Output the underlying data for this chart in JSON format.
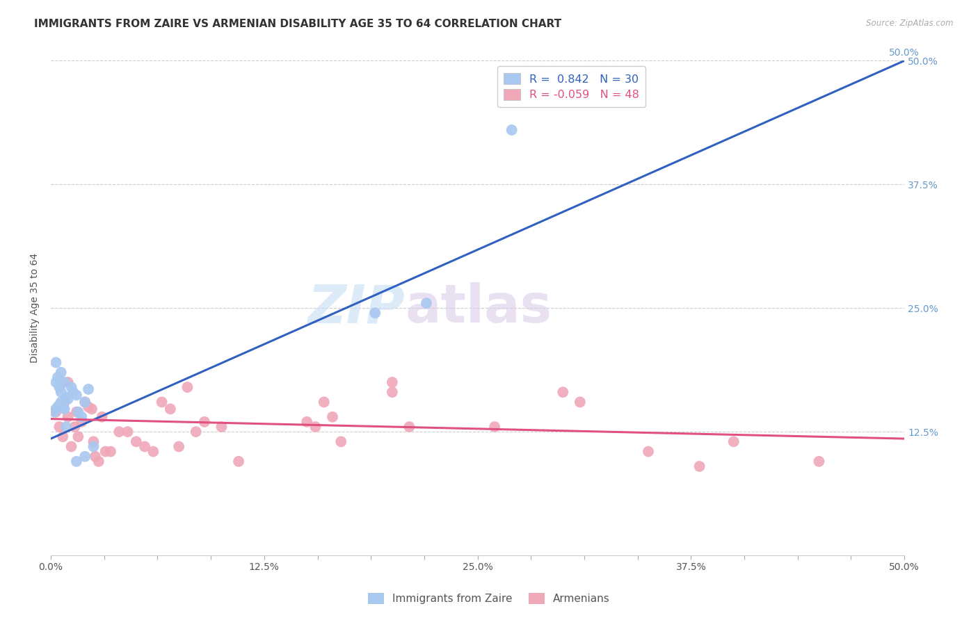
{
  "title": "IMMIGRANTS FROM ZAIRE VS ARMENIAN DISABILITY AGE 35 TO 64 CORRELATION CHART",
  "source": "Source: ZipAtlas.com",
  "ylabel": "Disability Age 35 to 64",
  "xlim": [
    0.0,
    0.5
  ],
  "ylim": [
    0.0,
    0.5
  ],
  "xtick_labels": [
    "0.0%",
    "",
    "",
    "",
    "12.5%",
    "",
    "",
    "",
    "25.0%",
    "",
    "",
    "",
    "37.5%",
    "",
    "",
    "",
    "50.0%"
  ],
  "xtick_vals": [
    0.0,
    0.03125,
    0.0625,
    0.09375,
    0.125,
    0.15625,
    0.1875,
    0.21875,
    0.25,
    0.28125,
    0.3125,
    0.34375,
    0.375,
    0.40625,
    0.4375,
    0.46875,
    0.5
  ],
  "ytick_labels": [
    "12.5%",
    "25.0%",
    "37.5%",
    "50.0%"
  ],
  "ytick_vals": [
    0.125,
    0.25,
    0.375,
    0.5
  ],
  "grid_color": "#cccccc",
  "background_color": "#ffffff",
  "watermark_zip": "ZIP",
  "watermark_atlas": "atlas",
  "blue_R": "0.842",
  "blue_N": "30",
  "pink_R": "-0.059",
  "pink_N": "48",
  "blue_color": "#a8c8f0",
  "pink_color": "#f0a8b8",
  "blue_line_color": "#3060c0",
  "pink_line_color": "#e05080",
  "blue_scatter": [
    [
      0.002,
      0.145
    ],
    [
      0.003,
      0.148
    ],
    [
      0.004,
      0.15
    ],
    [
      0.005,
      0.152
    ],
    [
      0.006,
      0.155
    ],
    [
      0.007,
      0.15
    ],
    [
      0.008,
      0.148
    ],
    [
      0.009,
      0.16
    ],
    [
      0.01,
      0.158
    ],
    [
      0.012,
      0.17
    ],
    [
      0.013,
      0.165
    ],
    [
      0.015,
      0.162
    ],
    [
      0.016,
      0.145
    ],
    [
      0.018,
      0.14
    ],
    [
      0.02,
      0.155
    ],
    [
      0.022,
      0.168
    ],
    [
      0.004,
      0.18
    ],
    [
      0.003,
      0.195
    ],
    [
      0.006,
      0.165
    ],
    [
      0.008,
      0.175
    ],
    [
      0.009,
      0.13
    ],
    [
      0.015,
      0.095
    ],
    [
      0.02,
      0.1
    ],
    [
      0.025,
      0.11
    ],
    [
      0.006,
      0.185
    ],
    [
      0.003,
      0.175
    ],
    [
      0.005,
      0.17
    ],
    [
      0.19,
      0.245
    ],
    [
      0.22,
      0.255
    ],
    [
      0.27,
      0.43
    ]
  ],
  "pink_scatter": [
    [
      0.003,
      0.145
    ],
    [
      0.005,
      0.13
    ],
    [
      0.007,
      0.12
    ],
    [
      0.008,
      0.155
    ],
    [
      0.01,
      0.14
    ],
    [
      0.012,
      0.11
    ],
    [
      0.014,
      0.13
    ],
    [
      0.015,
      0.145
    ],
    [
      0.016,
      0.12
    ],
    [
      0.018,
      0.135
    ],
    [
      0.02,
      0.155
    ],
    [
      0.022,
      0.15
    ],
    [
      0.024,
      0.148
    ],
    [
      0.025,
      0.115
    ],
    [
      0.026,
      0.1
    ],
    [
      0.028,
      0.095
    ],
    [
      0.03,
      0.14
    ],
    [
      0.032,
      0.105
    ],
    [
      0.035,
      0.105
    ],
    [
      0.04,
      0.125
    ],
    [
      0.045,
      0.125
    ],
    [
      0.05,
      0.115
    ],
    [
      0.055,
      0.11
    ],
    [
      0.06,
      0.105
    ],
    [
      0.065,
      0.155
    ],
    [
      0.07,
      0.148
    ],
    [
      0.075,
      0.11
    ],
    [
      0.08,
      0.17
    ],
    [
      0.085,
      0.125
    ],
    [
      0.09,
      0.135
    ],
    [
      0.1,
      0.13
    ],
    [
      0.11,
      0.095
    ],
    [
      0.15,
      0.135
    ],
    [
      0.155,
      0.13
    ],
    [
      0.16,
      0.155
    ],
    [
      0.165,
      0.14
    ],
    [
      0.17,
      0.115
    ],
    [
      0.2,
      0.175
    ],
    [
      0.2,
      0.165
    ],
    [
      0.21,
      0.13
    ],
    [
      0.01,
      0.175
    ],
    [
      0.26,
      0.13
    ],
    [
      0.3,
      0.165
    ],
    [
      0.31,
      0.155
    ],
    [
      0.35,
      0.105
    ],
    [
      0.38,
      0.09
    ],
    [
      0.4,
      0.115
    ],
    [
      0.45,
      0.095
    ]
  ],
  "blue_trendline": [
    [
      0.0,
      0.118
    ],
    [
      0.5,
      0.5
    ]
  ],
  "pink_trendline": [
    [
      0.0,
      0.138
    ],
    [
      0.5,
      0.118
    ]
  ],
  "title_fontsize": 11,
  "label_fontsize": 10,
  "tick_fontsize": 10,
  "legend_bottom_blue": "Immigrants from Zaire",
  "legend_bottom_pink": "Armenians"
}
